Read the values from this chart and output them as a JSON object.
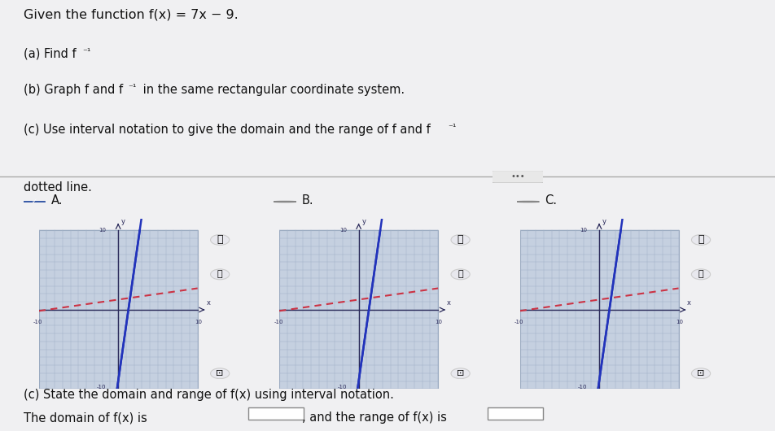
{
  "title_text": "Given the function f(x) = 7x − 9.",
  "part_a": "(a) Find f",
  "part_b": "(b) Graph f and f",
  "part_c_top": "(c) Use interval notation to give the domain and the range of f and f",
  "dotted_line_text": "dotted line.",
  "part_c_bottom": "(c) State the domain and range of f(x) using interval notation.",
  "domain_text": "The domain of f(x) is",
  "and_text": ", and the range of f(x) is",
  "bg_color": "#f0f0f2",
  "grid_bg": "#c5d0e0",
  "grid_line_color": "#a0b0c8",
  "axis_color": "#2a2a5a",
  "f_line_color": "#2233bb",
  "finv_line_color": "#cc3344",
  "dotted_color": "#cc3344",
  "text_color": "#111111",
  "separator_color": "#aaaaaa",
  "ellipsis_bg": "#e0e0e0",
  "graph_border": "#9aaabf",
  "input_box_color": "#ffffff",
  "input_box_border": "#888888",
  "checkmark_color": "#555577",
  "radio_border": "#888888",
  "zoom_icon_color": "#444466",
  "cursor_color": "#555555"
}
